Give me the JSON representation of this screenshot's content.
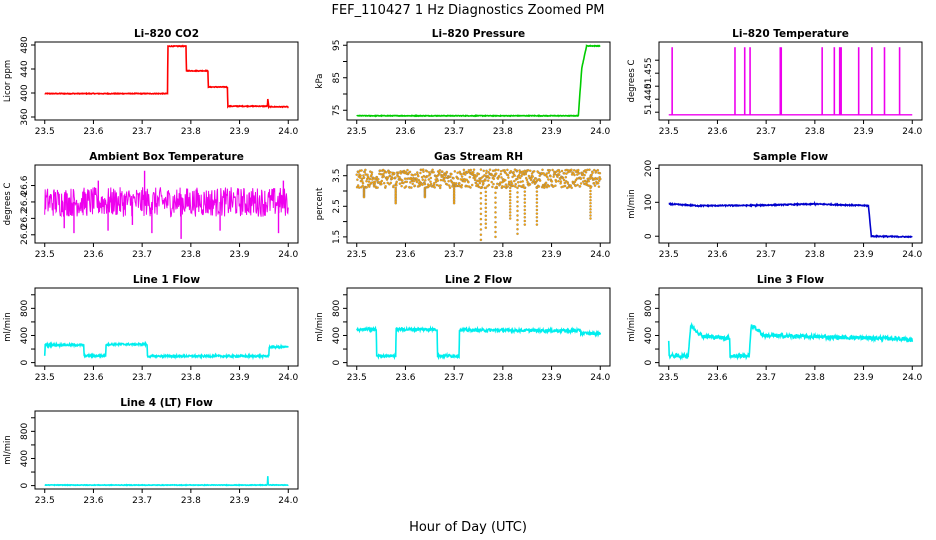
{
  "figure": {
    "title": "FEF_110427  1 Hz Diagnostics Zoomed PM",
    "xlabel": "Hour of Day (UTC)"
  },
  "chart_data": [
    {
      "id": "co2",
      "type": "line",
      "title": "Li–820 CO2",
      "ylabel": "Licor ppm",
      "color": "#ff0000",
      "xlim": [
        23.48,
        24.02
      ],
      "ylim": [
        355,
        485
      ],
      "xticks": [
        23.5,
        23.6,
        23.7,
        23.8,
        23.9,
        24.0
      ],
      "xtick_labels": [
        "23.5",
        "23.6",
        "23.7",
        "23.8",
        "23.9",
        "24.0"
      ],
      "yticks": [
        360,
        400,
        440,
        480
      ],
      "ytick_labels": [
        "360",
        "400",
        "440",
        "480"
      ],
      "noise": 0.6,
      "segments": [
        {
          "x0": 23.5,
          "x1": 23.752,
          "y0": 399,
          "y1": 399
        },
        {
          "x0": 23.752,
          "x1": 23.753,
          "y0": 399,
          "y1": 478
        },
        {
          "x0": 23.753,
          "x1": 23.79,
          "y0": 478,
          "y1": 478
        },
        {
          "x0": 23.79,
          "x1": 23.791,
          "y0": 478,
          "y1": 437
        },
        {
          "x0": 23.791,
          "x1": 23.835,
          "y0": 437,
          "y1": 437
        },
        {
          "x0": 23.835,
          "x1": 23.836,
          "y0": 437,
          "y1": 410
        },
        {
          "x0": 23.836,
          "x1": 23.875,
          "y0": 410,
          "y1": 410
        },
        {
          "x0": 23.875,
          "x1": 23.876,
          "y0": 410,
          "y1": 378
        },
        {
          "x0": 23.876,
          "x1": 23.957,
          "y0": 378,
          "y1": 378
        },
        {
          "x0": 23.957,
          "x1": 23.958,
          "y0": 378,
          "y1": 390
        },
        {
          "x0": 23.958,
          "x1": 23.96,
          "y0": 390,
          "y1": 377
        },
        {
          "x0": 23.96,
          "x1": 24.0,
          "y0": 377,
          "y1": 377
        }
      ]
    },
    {
      "id": "pressure",
      "type": "line",
      "title": "Li–820 Pressure",
      "ylabel": "kPa",
      "color": "#00cc00",
      "xlim": [
        23.48,
        24.02
      ],
      "ylim": [
        72,
        96
      ],
      "xticks": [
        23.5,
        23.6,
        23.7,
        23.8,
        23.9,
        24.0
      ],
      "xtick_labels": [
        "23.5",
        "23.6",
        "23.7",
        "23.8",
        "23.9",
        "24.0"
      ],
      "yticks": [
        75,
        80,
        85,
        90,
        95
      ],
      "ytick_labels": [
        "75",
        "",
        "85",
        "",
        "95"
      ],
      "noise": 0.1,
      "segments": [
        {
          "x0": 23.5,
          "x1": 23.955,
          "y0": 73.3,
          "y1": 73.3
        },
        {
          "x0": 23.955,
          "x1": 23.962,
          "y0": 73.3,
          "y1": 88
        },
        {
          "x0": 23.962,
          "x1": 23.972,
          "y0": 88,
          "y1": 94.8
        },
        {
          "x0": 23.972,
          "x1": 24.0,
          "y0": 94.8,
          "y1": 94.8
        }
      ]
    },
    {
      "id": "licor_temp",
      "type": "line",
      "title": "Li–820 Temperature",
      "ylabel": "degrees C",
      "color": "#ee00ee",
      "xlim": [
        23.48,
        24.02
      ],
      "ylim": [
        51.432,
        51.462
      ],
      "xticks": [
        23.5,
        23.6,
        23.7,
        23.8,
        23.9,
        24.0
      ],
      "xtick_labels": [
        "23.5",
        "23.6",
        "23.7",
        "23.8",
        "23.9",
        "24.0"
      ],
      "yticks": [
        51.435,
        51.44,
        51.445,
        51.45,
        51.455
      ],
      "ytick_labels": [
        "",
        "51.440",
        "",
        "51.455",
        ""
      ],
      "baseline": 51.434,
      "spike_top": 51.46,
      "spikes": [
        23.507,
        23.636,
        23.656,
        23.667,
        23.729,
        23.731,
        23.815,
        23.84,
        23.851,
        23.854,
        23.89,
        23.917,
        23.943,
        23.974
      ]
    },
    {
      "id": "box_temp",
      "type": "line",
      "title": "Ambient Box Temperature",
      "ylabel": "degrees C",
      "color": "#ee00ee",
      "xlim": [
        23.48,
        24.02
      ],
      "ylim": [
        25.9,
        26.85
      ],
      "xticks": [
        23.5,
        23.6,
        23.7,
        23.8,
        23.9,
        24.0
      ],
      "xtick_labels": [
        "23.5",
        "23.6",
        "23.7",
        "23.8",
        "23.9",
        "24.0"
      ],
      "yticks": [
        26.0,
        26.2,
        26.4,
        26.6
      ],
      "ytick_labels": [
        "26.0",
        "26.2",
        "26.4",
        "26.6"
      ],
      "band_x": [
        23.5,
        24.0
      ],
      "band_low": 26.22,
      "band_high": 26.58,
      "dips": [
        [
          23.56,
          26.02
        ],
        [
          23.63,
          26.05
        ],
        [
          23.72,
          26.02
        ],
        [
          23.78,
          25.95
        ],
        [
          23.86,
          26.05
        ],
        [
          23.98,
          26.02
        ],
        [
          23.54,
          26.08
        ],
        [
          23.68,
          26.12
        ]
      ],
      "peaks": [
        [
          23.705,
          26.78
        ],
        [
          23.61,
          26.66
        ],
        [
          23.99,
          26.66
        ]
      ]
    },
    {
      "id": "rh",
      "type": "scatter",
      "title": "Gas Stream RH",
      "ylabel": "percent",
      "color": "#ffa500",
      "edge_color": "#777777",
      "xlim": [
        23.48,
        24.02
      ],
      "ylim": [
        1.3,
        3.85
      ],
      "xticks": [
        23.5,
        23.6,
        23.7,
        23.8,
        23.9,
        24.0
      ],
      "xtick_labels": [
        "23.5",
        "23.6",
        "23.7",
        "23.8",
        "23.9",
        "24.0"
      ],
      "yticks": [
        1.5,
        2.0,
        2.5,
        3.0,
        3.5
      ],
      "ytick_labels": [
        "1.5",
        "",
        "2.5",
        "",
        "3.5"
      ],
      "band_low": 3.1,
      "band_high": 3.7,
      "dips": [
        [
          23.755,
          1.4
        ],
        [
          23.765,
          1.8
        ],
        [
          23.785,
          1.5
        ],
        [
          23.815,
          2.1
        ],
        [
          23.83,
          1.6
        ],
        [
          23.845,
          1.9
        ],
        [
          23.87,
          1.9
        ],
        [
          23.98,
          2.1
        ],
        [
          23.515,
          2.8
        ],
        [
          23.58,
          2.6
        ],
        [
          23.64,
          2.8
        ],
        [
          23.7,
          2.6
        ]
      ]
    },
    {
      "id": "sample_flow",
      "type": "line",
      "title": "Sample Flow",
      "ylabel": "ml/min",
      "color": "#0000cc",
      "xlim": [
        23.48,
        24.02
      ],
      "ylim": [
        -20,
        210
      ],
      "xticks": [
        23.5,
        23.6,
        23.7,
        23.8,
        23.9,
        24.0
      ],
      "xtick_labels": [
        "23.5",
        "23.6",
        "23.7",
        "23.8",
        "23.9",
        "24.0"
      ],
      "yticks": [
        0,
        100,
        200
      ],
      "ytick_labels": [
        "0",
        "100",
        "200"
      ],
      "noise": 1.5,
      "segments": [
        {
          "x0": 23.5,
          "x1": 23.56,
          "y0": 95,
          "y1": 90
        },
        {
          "x0": 23.56,
          "x1": 23.68,
          "y0": 90,
          "y1": 91
        },
        {
          "x0": 23.68,
          "x1": 23.8,
          "y0": 91,
          "y1": 95
        },
        {
          "x0": 23.8,
          "x1": 23.91,
          "y0": 95,
          "y1": 90
        },
        {
          "x0": 23.91,
          "x1": 23.916,
          "y0": 90,
          "y1": 0
        },
        {
          "x0": 23.916,
          "x1": 24.0,
          "y0": 0,
          "y1": -2
        }
      ]
    },
    {
      "id": "line1",
      "type": "line",
      "title": "Line 1 Flow",
      "ylabel": "ml/min",
      "color": "#00eeee",
      "xlim": [
        23.48,
        24.02
      ],
      "ylim": [
        -50,
        1100
      ],
      "xticks": [
        23.5,
        23.6,
        23.7,
        23.8,
        23.9,
        24.0
      ],
      "xtick_labels": [
        "23.5",
        "23.6",
        "23.7",
        "23.8",
        "23.9",
        "24.0"
      ],
      "yticks": [
        0,
        200,
        400,
        600,
        800,
        1000
      ],
      "ytick_labels": [
        "0",
        "",
        "400",
        "",
        "800",
        ""
      ],
      "noise": 14,
      "segments": [
        {
          "x0": 23.5,
          "x1": 23.501,
          "y0": 100,
          "y1": 260
        },
        {
          "x0": 23.501,
          "x1": 23.58,
          "y0": 260,
          "y1": 260
        },
        {
          "x0": 23.58,
          "x1": 23.581,
          "y0": 260,
          "y1": 100
        },
        {
          "x0": 23.581,
          "x1": 23.625,
          "y0": 100,
          "y1": 100
        },
        {
          "x0": 23.625,
          "x1": 23.626,
          "y0": 100,
          "y1": 270
        },
        {
          "x0": 23.626,
          "x1": 23.71,
          "y0": 270,
          "y1": 270
        },
        {
          "x0": 23.71,
          "x1": 23.711,
          "y0": 270,
          "y1": 95
        },
        {
          "x0": 23.711,
          "x1": 23.96,
          "y0": 95,
          "y1": 95
        },
        {
          "x0": 23.96,
          "x1": 23.961,
          "y0": 95,
          "y1": 230
        },
        {
          "x0": 23.961,
          "x1": 24.0,
          "y0": 230,
          "y1": 230
        }
      ]
    },
    {
      "id": "line2",
      "type": "line",
      "title": "Line 2 Flow",
      "ylabel": "ml/min",
      "color": "#00eeee",
      "xlim": [
        23.48,
        24.02
      ],
      "ylim": [
        -50,
        1100
      ],
      "xticks": [
        23.5,
        23.6,
        23.7,
        23.8,
        23.9,
        24.0
      ],
      "xtick_labels": [
        "23.5",
        "23.6",
        "23.7",
        "23.8",
        "23.9",
        "24.0"
      ],
      "yticks": [
        0,
        200,
        400,
        600,
        800,
        1000
      ],
      "ytick_labels": [
        "0",
        "",
        "400",
        "",
        "800",
        ""
      ],
      "noise": 22,
      "segments": [
        {
          "x0": 23.5,
          "x1": 23.54,
          "y0": 490,
          "y1": 490
        },
        {
          "x0": 23.54,
          "x1": 23.541,
          "y0": 490,
          "y1": 100
        },
        {
          "x0": 23.541,
          "x1": 23.58,
          "y0": 100,
          "y1": 100
        },
        {
          "x0": 23.58,
          "x1": 23.581,
          "y0": 100,
          "y1": 490
        },
        {
          "x0": 23.581,
          "x1": 23.665,
          "y0": 490,
          "y1": 490
        },
        {
          "x0": 23.665,
          "x1": 23.666,
          "y0": 490,
          "y1": 100
        },
        {
          "x0": 23.666,
          "x1": 23.71,
          "y0": 100,
          "y1": 100
        },
        {
          "x0": 23.71,
          "x1": 23.711,
          "y0": 100,
          "y1": 480
        },
        {
          "x0": 23.711,
          "x1": 23.96,
          "y0": 480,
          "y1": 470
        },
        {
          "x0": 23.96,
          "x1": 24.0,
          "y0": 430,
          "y1": 430
        }
      ]
    },
    {
      "id": "line3",
      "type": "line",
      "title": "Line 3 Flow",
      "ylabel": "ml/min",
      "color": "#00eeee",
      "xlim": [
        23.48,
        24.02
      ],
      "ylim": [
        -50,
        1100
      ],
      "xticks": [
        23.5,
        23.6,
        23.7,
        23.8,
        23.9,
        24.0
      ],
      "xtick_labels": [
        "23.5",
        "23.6",
        "23.7",
        "23.8",
        "23.9",
        "24.0"
      ],
      "yticks": [
        0,
        200,
        400,
        600,
        800,
        1000
      ],
      "ytick_labels": [
        "0",
        "",
        "400",
        "",
        "800",
        ""
      ],
      "noise": 30,
      "segments": [
        {
          "x0": 23.5,
          "x1": 23.501,
          "y0": 320,
          "y1": 100
        },
        {
          "x0": 23.501,
          "x1": 23.54,
          "y0": 100,
          "y1": 100
        },
        {
          "x0": 23.54,
          "x1": 23.545,
          "y0": 100,
          "y1": 540
        },
        {
          "x0": 23.545,
          "x1": 23.57,
          "y0": 540,
          "y1": 390
        },
        {
          "x0": 23.57,
          "x1": 23.625,
          "y0": 390,
          "y1": 360
        },
        {
          "x0": 23.625,
          "x1": 23.626,
          "y0": 360,
          "y1": 100
        },
        {
          "x0": 23.626,
          "x1": 23.665,
          "y0": 100,
          "y1": 100
        },
        {
          "x0": 23.665,
          "x1": 23.67,
          "y0": 100,
          "y1": 560
        },
        {
          "x0": 23.67,
          "x1": 23.695,
          "y0": 560,
          "y1": 400
        },
        {
          "x0": 23.695,
          "x1": 23.99,
          "y0": 400,
          "y1": 350
        },
        {
          "x0": 23.99,
          "x1": 24.0,
          "y0": 330,
          "y1": 330
        }
      ]
    },
    {
      "id": "line4",
      "type": "line",
      "title": "Line 4 (LT) Flow",
      "ylabel": "ml/min",
      "color": "#00eeee",
      "xlim": [
        23.48,
        24.02
      ],
      "ylim": [
        -50,
        1100
      ],
      "xticks": [
        23.5,
        23.6,
        23.7,
        23.8,
        23.9,
        24.0
      ],
      "xtick_labels": [
        "23.5",
        "23.6",
        "23.7",
        "23.8",
        "23.9",
        "24.0"
      ],
      "yticks": [
        0,
        200,
        400,
        600,
        800,
        1000
      ],
      "ytick_labels": [
        "0",
        "",
        "400",
        "",
        "800",
        ""
      ],
      "noise": 4,
      "segments": [
        {
          "x0": 23.5,
          "x1": 23.957,
          "y0": 8,
          "y1": 8
        },
        {
          "x0": 23.957,
          "x1": 23.958,
          "y0": 8,
          "y1": 140
        },
        {
          "x0": 23.958,
          "x1": 23.959,
          "y0": 140,
          "y1": 10
        },
        {
          "x0": 23.959,
          "x1": 24.0,
          "y0": 10,
          "y1": 8
        }
      ]
    }
  ]
}
